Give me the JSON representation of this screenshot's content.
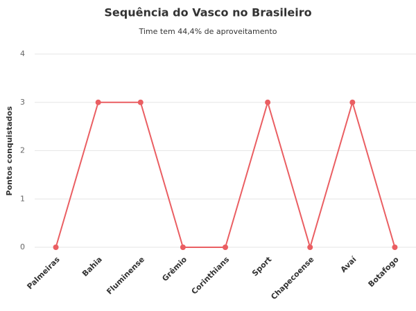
{
  "chart_data": {
    "type": "line",
    "title": "Sequência do Vasco no Brasileiro",
    "subtitle": "Time tem 44,4% de aproveitamento",
    "y_label": "Pontos conquistados",
    "categories": [
      "Palmeiras",
      "Bahia",
      "Fluminense",
      "Grêmio",
      "Corinthians",
      "Sport",
      "Chapecoense",
      "Avaí",
      "Botafogo"
    ],
    "values": [
      0,
      3,
      3,
      0,
      0,
      3,
      0,
      3,
      0
    ],
    "color": "#ea5e62",
    "ylim": [
      0,
      4
    ],
    "yticks": [
      0,
      1,
      2,
      3,
      4
    ],
    "grid": true
  }
}
